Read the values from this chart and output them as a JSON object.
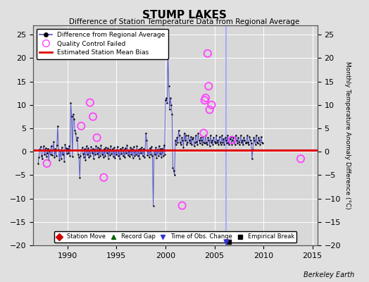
{
  "title": "STUMP LAKES",
  "subtitle": "Difference of Station Temperature Data from Regional Average",
  "ylabel_right": "Monthly Temperature Anomaly Difference (°C)",
  "xlim": [
    1986.5,
    2015.5
  ],
  "ylim": [
    -20,
    27
  ],
  "yticks": [
    -20,
    -15,
    -10,
    -5,
    0,
    5,
    10,
    15,
    20,
    25
  ],
  "xticks": [
    1990,
    1995,
    2000,
    2005,
    2010,
    2015
  ],
  "fig_bg_color": "#e0e0e0",
  "plot_bg_color": "#d8d8d8",
  "grid_color": "#ffffff",
  "bias_line_color": "#dd0000",
  "bias_line_value": 0.3,
  "main_line_color": "#5555cc",
  "main_dot_color": "#000000",
  "qc_fail_color": "#ff44ff",
  "station_move_color": "#cc0000",
  "record_gap_color": "#006600",
  "tobs_change_color": "#3333cc",
  "empirical_break_color": "#000000",
  "vertical_line_x": 2006.2,
  "vertical_line_color": "#aaaaff",
  "empirical_break_x": 2006.5,
  "empirical_break_y": -19.3,
  "tobs_marker_x": 2006.2,
  "tobs_marker_y": -19.3,
  "berkeley_earth_label": "Berkeley Earth",
  "seed": 42,
  "signal_data": [
    -2.5,
    -1.2,
    0.5,
    1.1,
    -0.8,
    -1.5,
    0.3,
    1.2,
    -0.5,
    0.8,
    -1.0,
    -0.3,
    0.7,
    -1.8,
    0.2,
    -0.5,
    1.3,
    -0.7,
    0.4,
    2.1,
    -1.2,
    0.6,
    -0.9,
    1.4,
    5.5,
    0.5,
    -1.8,
    0.2,
    -1.5,
    1.0,
    -0.6,
    0.3,
    -2.0,
    1.5,
    0.8,
    -0.4,
    0.6,
    -0.3,
    1.2,
    -0.8,
    10.5,
    7.5,
    -1.0,
    8.0,
    7.0,
    4.5,
    4.0,
    2.5,
    3.0,
    -0.5,
    -1.2,
    -5.5,
    -0.8,
    0.3,
    0.9,
    -0.4,
    -1.1,
    0.6,
    -1.8,
    1.2,
    -0.5,
    0.8,
    -1.2,
    0.4,
    -0.9,
    1.1,
    -0.3,
    0.7,
    -1.5,
    0.5,
    -0.6,
    1.3,
    -0.4,
    0.9,
    -1.1,
    0.6,
    -0.8,
    1.4,
    -0.5,
    0.3,
    -1.2,
    0.7,
    -0.9,
    1.0,
    -0.3,
    0.8,
    -1.4,
    0.5,
    -0.7,
    1.2,
    -0.4,
    0.6,
    -1.0,
    0.9,
    -1.3,
    0.4,
    -0.6,
    1.1,
    -0.8,
    0.3,
    -1.5,
    0.7,
    -0.4,
    1.0,
    -0.9,
    0.5,
    -1.2,
    0.8,
    -0.3,
    1.4,
    -0.7,
    0.2,
    -1.0,
    0.9,
    -0.5,
    0.6,
    -1.3,
    1.1,
    -0.8,
    0.4,
    -0.6,
    1.2,
    -0.9,
    0.5,
    -1.4,
    0.7,
    -0.3,
    1.0,
    -0.8,
    0.6,
    -1.1,
    0.3,
    4.0,
    2.5,
    -0.7,
    0.4,
    -1.2,
    0.8,
    -0.5,
    1.1,
    -0.9,
    -11.5,
    0.3,
    -0.6,
    0.9,
    -1.3,
    0.5,
    -0.8,
    1.2,
    -0.4,
    0.7,
    -1.1,
    0.6,
    -0.9,
    1.4,
    -0.5,
    11.0,
    11.5,
    10.5,
    21.0,
    14.0,
    9.0,
    11.5,
    10.0,
    8.0,
    -3.5,
    -4.0,
    -5.0,
    2.5,
    1.5,
    3.0,
    2.0,
    4.5,
    3.5,
    2.0,
    1.5,
    3.0,
    2.5,
    1.0,
    4.0,
    2.5,
    3.5,
    1.5,
    2.0,
    3.5,
    2.5,
    1.8,
    3.2,
    1.5,
    2.8,
    3.0,
    1.2,
    2.0,
    3.5,
    2.2,
    1.5,
    4.0,
    2.5,
    1.8,
    3.0,
    2.5,
    1.5,
    3.2,
    2.0,
    1.8,
    3.5,
    2.0,
    1.5,
    3.0,
    2.5,
    1.2,
    3.5,
    2.0,
    2.5,
    1.5,
    3.0,
    2.2,
    1.8,
    3.5,
    2.0,
    2.5,
    1.5,
    3.2,
    2.0,
    1.5,
    3.5,
    2.0,
    2.8,
    1.5,
    3.0,
    2.5,
    1.8,
    3.5,
    2.0,
    1.5,
    2.8,
    3.2,
    1.5,
    2.5,
    3.0,
    2.0,
    1.5,
    3.5,
    2.5,
    1.8,
    3.0,
    2.2,
    1.5,
    3.5,
    2.0,
    2.5,
    1.5,
    3.0,
    2.5,
    1.8,
    2.0,
    3.5,
    2.0,
    1.5,
    3.2,
    2.5,
    1.8,
    -1.5,
    0.5,
    3.0,
    2.5,
    1.5,
    3.5,
    2.0,
    1.8,
    3.0,
    2.5,
    1.5,
    3.2,
    2.0,
    1.8
  ],
  "qc_fail_points": [
    [
      1987.9,
      -2.5
    ],
    [
      1991.4,
      5.5
    ],
    [
      1992.3,
      10.5
    ],
    [
      1992.6,
      7.5
    ],
    [
      1993.0,
      3.0
    ],
    [
      1993.7,
      -5.5
    ],
    [
      2001.7,
      -11.5
    ],
    [
      2003.9,
      4.0
    ],
    [
      2004.0,
      11.0
    ],
    [
      2004.1,
      11.5
    ],
    [
      2004.3,
      21.0
    ],
    [
      2004.4,
      14.0
    ],
    [
      2004.5,
      9.0
    ],
    [
      2004.7,
      10.0
    ],
    [
      2006.8,
      2.5
    ],
    [
      2013.8,
      -1.5
    ]
  ]
}
